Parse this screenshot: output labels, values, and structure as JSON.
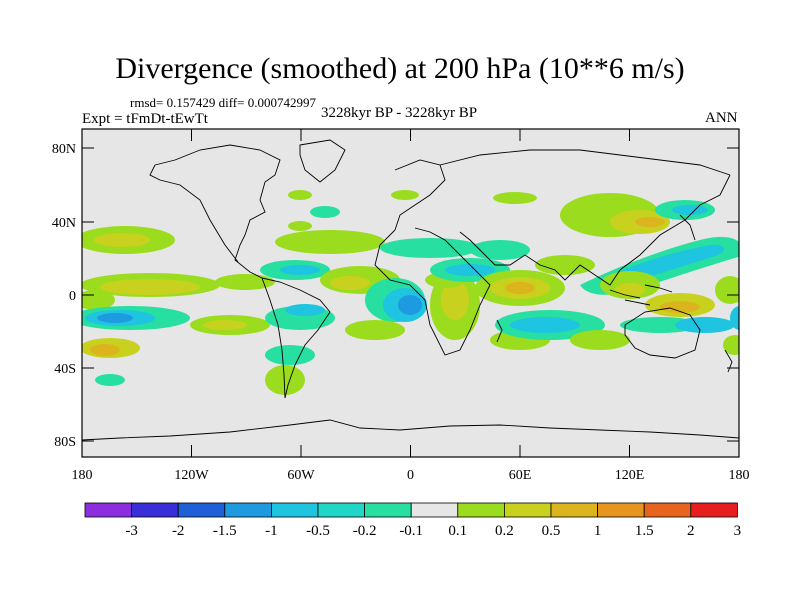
{
  "map": {
    "title": "Divergence (smoothed) at 200 hPa (10**6 m/s)",
    "stats_text": "rmsd= 0.157429 diff= 0.000742997",
    "experiment_text": "Expt = tFmDt-tEwTt",
    "period_text": "3228kyr BP - 3228kyr BP",
    "season_text": "ANN",
    "projection": "cylindrical equidistant",
    "lon_range": [
      -180,
      180
    ],
    "lat_range": [
      -90,
      90
    ],
    "lat_tick_labels": [
      "80N",
      "40N",
      "0",
      "40S",
      "80S"
    ],
    "lon_tick_labels": [
      "180",
      "120W",
      "60W",
      "0",
      "60E",
      "120E",
      "180"
    ],
    "colorbar": {
      "labels": [
        "-3",
        "-2",
        "-1.5",
        "-1",
        "-0.5",
        "-0.2",
        "-0.1",
        "0.1",
        "0.2",
        "0.5",
        "1",
        "1.5",
        "2",
        "3"
      ],
      "colors": [
        "#8c2ee0",
        "#3a2ed8",
        "#1f5fd8",
        "#1e9be0",
        "#1ec4e0",
        "#20d6c6",
        "#27dfa0",
        "#e6e6e6",
        "#9bdc1e",
        "#c8d21e",
        "#dcb41e",
        "#e6961e",
        "#e6641e",
        "#e61e1e"
      ]
    },
    "field_color_scale": {
      "neg_strong": "#1e9be0",
      "neg_medium": "#1ec4e0",
      "neg_weak": "#27dfa0",
      "neutral": "#e6e6e6",
      "pos_weak": "#9bdc1e",
      "pos_medium": "#c8d21e",
      "pos_strong": "#dcb41e",
      "pos_max": "#e6961e"
    }
  }
}
